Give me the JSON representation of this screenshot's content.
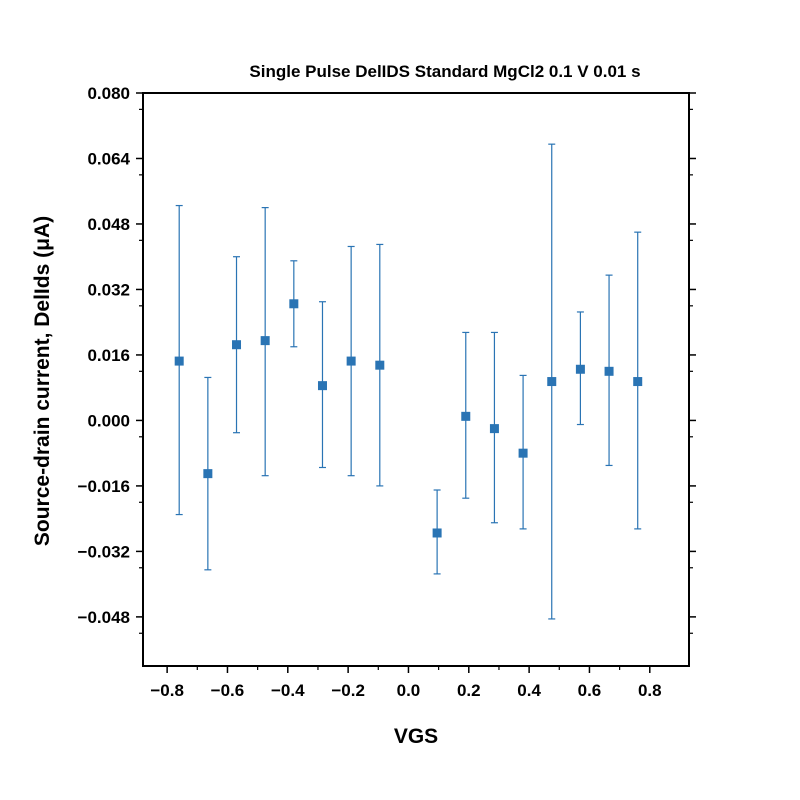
{
  "chart_data": {
    "type": "scatter",
    "title": "Single Pulse DelIDS Standard MgCl2 0.1 V 0.01 s",
    "xlabel": "VGS",
    "ylabel": "Source-drain current, DelIds (μA)",
    "xlim": [
      -0.88,
      0.93
    ],
    "ylim": [
      -0.06,
      0.08
    ],
    "x_ticks": [
      -0.8,
      -0.6,
      -0.4,
      -0.2,
      0.0,
      0.2,
      0.4,
      0.6,
      0.8
    ],
    "x_tick_labels": [
      "−0.8",
      "−0.6",
      "−0.4",
      "−0.2",
      "0.0",
      "0.2",
      "0.4",
      "0.6",
      "0.8"
    ],
    "y_ticks": [
      0.08,
      0.064,
      0.048,
      0.032,
      0.016,
      0.0,
      -0.016,
      -0.032,
      -0.048
    ],
    "y_tick_labels": [
      "0.080",
      "0.064",
      "0.048",
      "0.032",
      "0.016",
      "0.000",
      "−0.016",
      "−0.032",
      "−0.048"
    ],
    "grid": false,
    "color": "#2a74b4",
    "series": [
      {
        "x": [
          -0.76,
          -0.665,
          -0.57,
          -0.475,
          -0.38,
          -0.285,
          -0.19,
          -0.095,
          0.095,
          0.19,
          0.285,
          0.38,
          0.475,
          0.57,
          0.665,
          0.76
        ],
        "y": [
          0.0145,
          -0.013,
          0.0185,
          0.0195,
          0.0285,
          0.0085,
          0.0145,
          0.0135,
          -0.0275,
          0.001,
          -0.002,
          -0.008,
          0.0095,
          0.0125,
          0.012,
          0.0095
        ],
        "y_err_upper": [
          0.0525,
          0.0105,
          0.04,
          0.052,
          0.039,
          0.029,
          0.0425,
          0.043,
          -0.017,
          0.0215,
          0.0215,
          0.011,
          0.0675,
          0.0265,
          0.0355,
          0.046
        ],
        "y_err_lower": [
          -0.023,
          -0.0365,
          -0.003,
          -0.0135,
          0.018,
          -0.0115,
          -0.0135,
          -0.016,
          -0.0375,
          -0.019,
          -0.025,
          -0.0265,
          -0.0485,
          -0.001,
          -0.011,
          -0.0265
        ]
      }
    ]
  }
}
